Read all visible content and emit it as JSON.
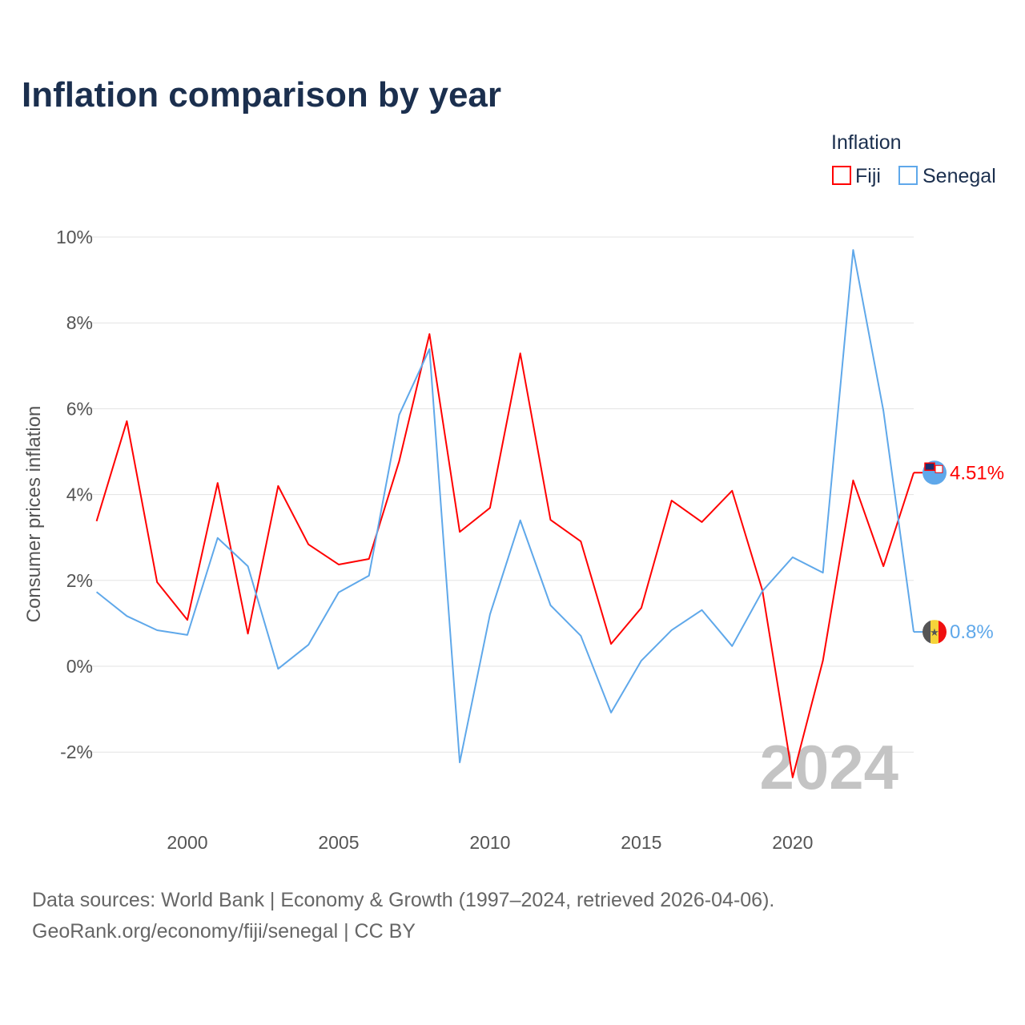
{
  "title": "Inflation comparison by year",
  "legend": {
    "title": "Inflation",
    "items": [
      {
        "label": "Fiji",
        "color": "#ff0000"
      },
      {
        "label": "Senegal",
        "color": "#5fa8ea"
      }
    ]
  },
  "footer": {
    "line1": "Data sources: World Bank | Economy & Growth (1997–2024, retrieved 2026-04-06).",
    "line2": "GeoRank.org/economy/fiji/senegal | CC BY"
  },
  "chart_data": {
    "type": "line",
    "title": "Inflation comparison by year",
    "xlabel": "",
    "ylabel": "Consumer prices inflation",
    "xlim": [
      1997,
      2024
    ],
    "ylim": [
      -3,
      10.5
    ],
    "x_ticks": [
      2000,
      2005,
      2010,
      2015,
      2020
    ],
    "y_ticks": [
      -2,
      0,
      2,
      4,
      6,
      8,
      10
    ],
    "y_tick_labels": [
      "-2%",
      "0%",
      "2%",
      "4%",
      "6%",
      "8%",
      "10%"
    ],
    "grid": true,
    "legend_position": "top-right",
    "watermark": "2024",
    "x": [
      1997,
      1998,
      1999,
      2000,
      2001,
      2002,
      2003,
      2004,
      2005,
      2006,
      2007,
      2008,
      2009,
      2010,
      2011,
      2012,
      2013,
      2014,
      2015,
      2016,
      2017,
      2018,
      2019,
      2020,
      2021,
      2022,
      2023,
      2024
    ],
    "series": [
      {
        "name": "Fiji",
        "color": "#ff0000",
        "end_label": "4.51%",
        "values": [
          3.38,
          5.71,
          1.96,
          1.08,
          4.27,
          0.76,
          4.2,
          2.84,
          2.37,
          2.5,
          4.78,
          7.74,
          3.13,
          3.69,
          7.29,
          3.41,
          2.91,
          0.52,
          1.36,
          3.86,
          3.36,
          4.09,
          1.77,
          -2.59,
          0.13,
          4.33,
          2.33,
          4.51
        ]
      },
      {
        "name": "Senegal",
        "color": "#5fa8ea",
        "end_label": "0.8%",
        "values": [
          1.73,
          1.17,
          0.84,
          0.73,
          2.99,
          2.33,
          -0.06,
          0.5,
          1.72,
          2.11,
          5.86,
          7.39,
          -2.24,
          1.21,
          3.4,
          1.42,
          0.71,
          -1.08,
          0.13,
          0.84,
          1.31,
          0.47,
          1.75,
          2.54,
          2.18,
          9.7,
          5.95,
          0.8
        ]
      }
    ]
  }
}
